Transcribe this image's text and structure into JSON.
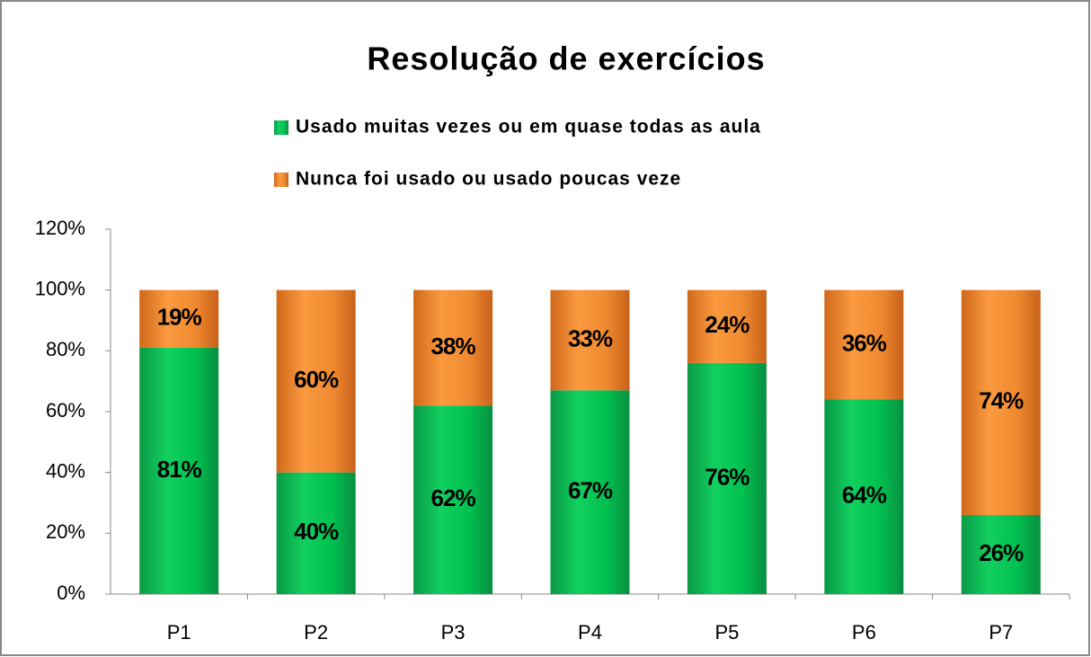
{
  "chart_data": {
    "type": "stacked_bar",
    "title": "Resolução de exercícios",
    "categories": [
      "P1",
      "P2",
      "P3",
      "P4",
      "P5",
      "P6",
      "P7"
    ],
    "series": [
      {
        "name": "Usado muitas vezes ou em quase todas as aula",
        "color": "#00b050",
        "values": [
          81,
          40,
          62,
          67,
          76,
          64,
          26
        ],
        "value_labels": [
          "81%",
          "40%",
          "62%",
          "67%",
          "76%",
          "64%",
          "26%"
        ]
      },
      {
        "name": "Nunca foi usado ou usado poucas veze",
        "color": "#f0842c",
        "values": [
          19,
          60,
          38,
          33,
          24,
          36,
          74
        ],
        "value_labels": [
          "19%",
          "60%",
          "38%",
          "33%",
          "24%",
          "36%",
          "74%"
        ]
      }
    ],
    "ylim": [
      0,
      120
    ],
    "yticks": [
      {
        "value": 0,
        "label": "0%"
      },
      {
        "value": 20,
        "label": "20%"
      },
      {
        "value": 40,
        "label": "40%"
      },
      {
        "value": 60,
        "label": "60%"
      },
      {
        "value": 80,
        "label": "80%"
      },
      {
        "value": 100,
        "label": "100%"
      },
      {
        "value": 120,
        "label": "120%"
      }
    ],
    "legend": "top"
  }
}
